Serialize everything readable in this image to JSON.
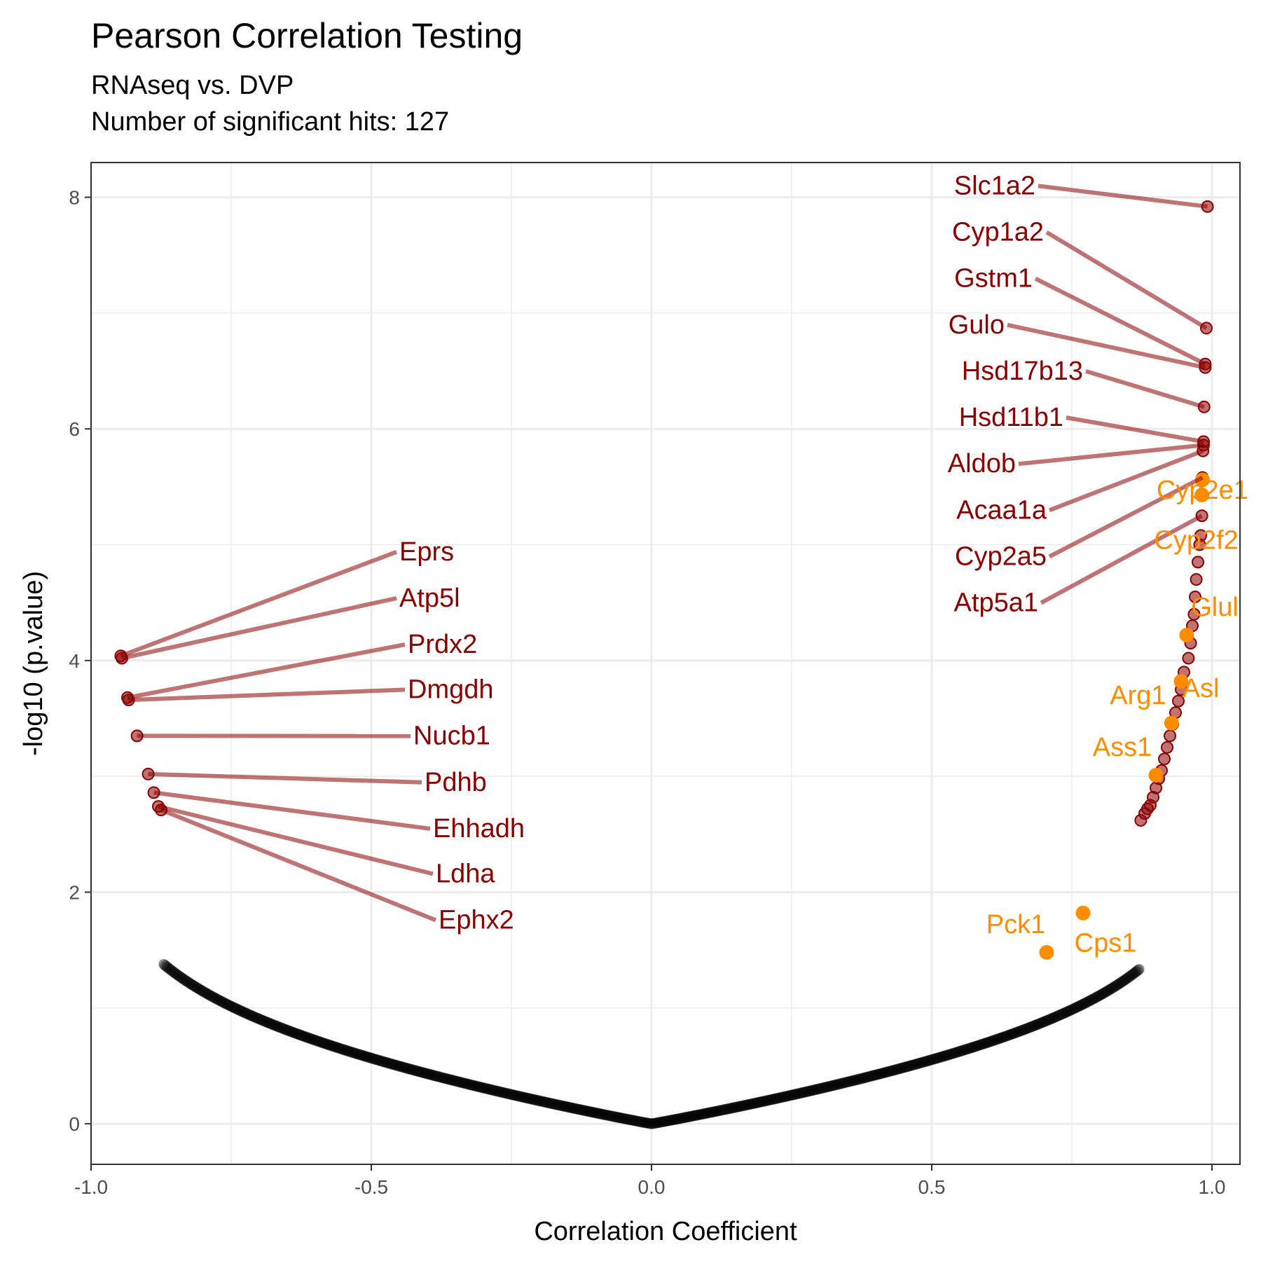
{
  "chart_data": {
    "type": "scatter",
    "title": "Pearson Correlation Testing",
    "subtitle_lines": [
      "RNAseq vs. DVP",
      "Number of significant hits: 127"
    ],
    "xlabel": "Correlation Coefficient",
    "ylabel": "-log10 (p.value)",
    "xlim": [
      -1.0,
      1.05
    ],
    "ylim": [
      -0.35,
      8.3
    ],
    "xticks": [
      -1.0,
      -0.5,
      0.0,
      0.5,
      1.0
    ],
    "xtick_labels": [
      "-1.0",
      "-0.5",
      "0.0",
      "0.5",
      "1.0"
    ],
    "yticks": [
      0,
      2,
      4,
      6,
      8
    ],
    "ytick_labels": [
      "0",
      "2",
      "4",
      "6",
      "8"
    ],
    "grid": true,
    "colors": {
      "background_points": "#000000",
      "significant": "#8b0000",
      "highlight": "#ff8c00",
      "grid": "#ebebeb",
      "panel_border": "#333333"
    },
    "significant_points": [
      [
        0.992,
        7.92
      ],
      [
        0.99,
        6.87
      ],
      [
        0.988,
        6.56
      ],
      [
        0.988,
        6.53
      ],
      [
        0.986,
        6.19
      ],
      [
        0.985,
        5.89
      ],
      [
        0.985,
        5.86
      ],
      [
        0.984,
        5.81
      ],
      [
        0.983,
        5.58
      ],
      [
        0.982,
        5.25
      ],
      [
        0.98,
        5.08
      ],
      [
        0.978,
        5.0
      ],
      [
        0.975,
        4.85
      ],
      [
        0.972,
        4.7
      ],
      [
        0.97,
        4.55
      ],
      [
        0.968,
        4.4
      ],
      [
        0.965,
        4.3
      ],
      [
        0.962,
        4.15
      ],
      [
        0.958,
        4.02
      ],
      [
        0.95,
        3.9
      ],
      [
        0.945,
        3.75
      ],
      [
        0.94,
        3.65
      ],
      [
        0.935,
        3.55
      ],
      [
        0.93,
        3.45
      ],
      [
        0.925,
        3.35
      ],
      [
        0.92,
        3.25
      ],
      [
        0.915,
        3.15
      ],
      [
        0.91,
        3.05
      ],
      [
        0.905,
        2.98
      ],
      [
        0.9,
        2.9
      ],
      [
        0.895,
        2.82
      ],
      [
        0.89,
        2.75
      ],
      [
        0.885,
        2.72
      ],
      [
        0.88,
        2.68
      ],
      [
        0.873,
        2.62
      ],
      [
        -0.947,
        4.04
      ],
      [
        -0.945,
        4.02
      ],
      [
        -0.935,
        3.68
      ],
      [
        -0.933,
        3.66
      ],
      [
        -0.918,
        3.35
      ],
      [
        -0.898,
        3.02
      ],
      [
        -0.888,
        2.86
      ],
      [
        -0.88,
        2.74
      ],
      [
        -0.875,
        2.71
      ]
    ],
    "highlight_points": [
      [
        "Cyp2e1",
        0.983,
        5.56
      ],
      [
        "Cyp2f2",
        0.982,
        5.43
      ],
      [
        "Glul",
        0.955,
        4.22
      ],
      [
        "Asl",
        0.945,
        3.82
      ],
      [
        "Arg1",
        0.928,
        3.46
      ],
      [
        "Ass1",
        0.9,
        3.01
      ],
      [
        "Cps1",
        0.77,
        1.82
      ],
      [
        "Pck1",
        0.705,
        1.48
      ]
    ],
    "left_labels": [
      [
        "Eprs",
        -0.947,
        4.04,
        -0.45,
        4.95
      ],
      [
        "Atp5l",
        -0.945,
        4.02,
        -0.45,
        4.55
      ],
      [
        "Prdx2",
        -0.935,
        3.68,
        -0.435,
        4.15
      ],
      [
        "Dmgdh",
        -0.933,
        3.66,
        -0.435,
        3.76
      ],
      [
        "Nucb1",
        -0.918,
        3.35,
        -0.425,
        3.36
      ],
      [
        "Pdhb",
        -0.898,
        3.02,
        -0.405,
        2.96
      ],
      [
        "Ehhadh",
        -0.888,
        2.86,
        -0.39,
        2.56
      ],
      [
        "Ldha",
        -0.88,
        2.74,
        -0.385,
        2.17
      ],
      [
        "Ephx2",
        -0.875,
        2.71,
        -0.38,
        1.77
      ]
    ],
    "right_labels": [
      [
        "Slc1a2",
        0.992,
        7.92,
        0.685,
        8.11
      ],
      [
        "Cyp1a2",
        0.99,
        6.87,
        0.7,
        7.71
      ],
      [
        "Gstm1",
        0.988,
        6.56,
        0.68,
        7.31
      ],
      [
        "Gulo",
        0.988,
        6.53,
        0.63,
        6.91
      ],
      [
        "Hsd17b13",
        0.986,
        6.19,
        0.77,
        6.51
      ],
      [
        "Hsd11b1",
        0.985,
        5.89,
        0.735,
        6.11
      ],
      [
        "Aldob",
        0.985,
        5.86,
        0.65,
        5.71
      ],
      [
        "Acaa1a",
        0.984,
        5.81,
        0.705,
        5.31
      ],
      [
        "Cyp2a5",
        0.983,
        5.58,
        0.705,
        4.91
      ],
      [
        "Atp5a1",
        0.982,
        5.25,
        0.69,
        4.51
      ]
    ],
    "highlight_label_offsets": {
      "Cyp2e1": [
        0.0,
        -0.08
      ],
      "Cyp2f2": [
        -0.01,
        -0.38
      ],
      "Glul": [
        0.05,
        0.25
      ],
      "Asl": [
        0.035,
        -0.05
      ],
      "Arg1": [
        -0.06,
        0.25
      ],
      "Ass1": [
        -0.06,
        0.25
      ],
      "Cps1": [
        0.04,
        -0.25
      ],
      "Pck1": [
        -0.055,
        0.25
      ]
    }
  }
}
